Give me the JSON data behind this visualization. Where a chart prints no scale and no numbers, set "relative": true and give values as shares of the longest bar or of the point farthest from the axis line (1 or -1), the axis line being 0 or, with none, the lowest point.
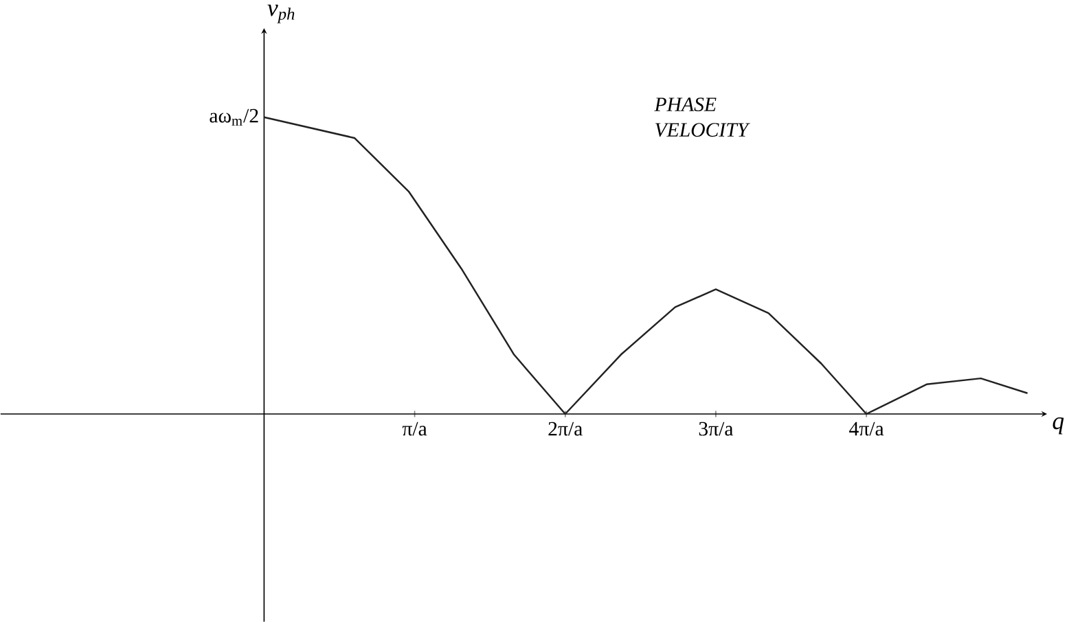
{
  "chart_data": {
    "type": "line",
    "relative": true,
    "xlabel": "q",
    "ylabel": "v$_{ph}$",
    "x": [
      0,
      0.6,
      0.96,
      1.31,
      1.66,
      2.0,
      2.37,
      2.73,
      3.0,
      3.35,
      3.7,
      4.0,
      4.4,
      4.76,
      5.07
    ],
    "values": [
      1.0,
      0.93,
      0.75,
      0.49,
      0.2,
      0,
      0.2,
      0.36,
      0.42,
      0.34,
      0.17,
      0,
      0.1,
      0.12,
      0.07
    ],
    "color": "#222222",
    "line_style": "solid",
    "marker": "none",
    "tick_labels": "x",
    "xlim": [
      -1.75,
      5.2
    ],
    "xticks": [
      {
        "value": 1,
        "label": "π/a"
      },
      {
        "value": 2,
        "label": "2π/a"
      },
      {
        "value": 3,
        "label": "3π/a"
      },
      {
        "value": 4,
        "label": "4π/a"
      }
    ],
    "annotations": [
      {
        "text": "aω$_{m}$/2",
        "x": 0,
        "y": 1.0
      },
      "PHASE VELOCITY"
    ]
  }
}
